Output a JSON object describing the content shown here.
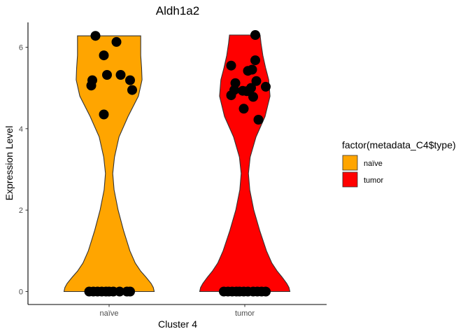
{
  "chart_data": {
    "type": "violin",
    "title": "Aldh1a2",
    "xlabel": "Cluster 4",
    "ylabel": "Expression Level",
    "categories": [
      "naïve",
      "tumor"
    ],
    "ylim": [
      -0.3,
      6.6
    ],
    "yticks": [
      "0",
      "2",
      "4",
      "6"
    ],
    "legend_title": "factor(metadata_C4$type)",
    "legend_position": "right",
    "grid": false,
    "series": [
      {
        "name": "naïve",
        "color": "#FFA500",
        "points": [
          {
            "x": -0.19,
            "y": 0
          },
          {
            "x": -0.15,
            "y": 0
          },
          {
            "x": -0.11,
            "y": 0
          },
          {
            "x": -0.07,
            "y": 0
          },
          {
            "x": -0.03,
            "y": 0
          },
          {
            "x": 0.0,
            "y": 0
          },
          {
            "x": 0.04,
            "y": 0
          },
          {
            "x": 0.1,
            "y": 0
          },
          {
            "x": 0.17,
            "y": 0
          },
          {
            "x": 0.2,
            "y": 0
          },
          {
            "x": -0.13,
            "y": 6.28
          },
          {
            "x": 0.07,
            "y": 6.13
          },
          {
            "x": -0.05,
            "y": 5.8
          },
          {
            "x": -0.02,
            "y": 5.32
          },
          {
            "x": 0.11,
            "y": 5.32
          },
          {
            "x": -0.16,
            "y": 5.19
          },
          {
            "x": 0.2,
            "y": 5.19
          },
          {
            "x": -0.17,
            "y": 5.06
          },
          {
            "x": 0.22,
            "y": 4.95
          },
          {
            "x": -0.05,
            "y": 4.35
          }
        ],
        "violin": [
          {
            "y": 0.0,
            "w": 1.0
          },
          {
            "y": 0.1,
            "w": 0.98
          },
          {
            "y": 0.2,
            "w": 0.93
          },
          {
            "y": 0.35,
            "w": 0.82
          },
          {
            "y": 0.5,
            "w": 0.7
          },
          {
            "y": 0.7,
            "w": 0.58
          },
          {
            "y": 1.0,
            "w": 0.46
          },
          {
            "y": 1.5,
            "w": 0.32
          },
          {
            "y": 2.0,
            "w": 0.2
          },
          {
            "y": 2.5,
            "w": 0.11
          },
          {
            "y": 2.9,
            "w": 0.08
          },
          {
            "y": 3.3,
            "w": 0.12
          },
          {
            "y": 3.8,
            "w": 0.22
          },
          {
            "y": 4.3,
            "w": 0.42
          },
          {
            "y": 4.8,
            "w": 0.65
          },
          {
            "y": 5.2,
            "w": 0.73
          },
          {
            "y": 5.5,
            "w": 0.72
          },
          {
            "y": 5.8,
            "w": 0.7
          },
          {
            "y": 6.1,
            "w": 0.7
          },
          {
            "y": 6.28,
            "w": 0.7
          }
        ]
      },
      {
        "name": "tumor",
        "color": "#FF0000",
        "points": [
          {
            "x": -0.2,
            "y": 0
          },
          {
            "x": -0.16,
            "y": 0
          },
          {
            "x": -0.12,
            "y": 0
          },
          {
            "x": -0.08,
            "y": 0
          },
          {
            "x": -0.05,
            "y": 0
          },
          {
            "x": -0.01,
            "y": 0
          },
          {
            "x": 0.03,
            "y": 0
          },
          {
            "x": 0.08,
            "y": 0
          },
          {
            "x": 0.12,
            "y": 0
          },
          {
            "x": 0.16,
            "y": 0
          },
          {
            "x": 0.2,
            "y": 0
          },
          {
            "x": 0.1,
            "y": 6.3
          },
          {
            "x": 0.1,
            "y": 5.68
          },
          {
            "x": -0.13,
            "y": 5.55
          },
          {
            "x": 0.03,
            "y": 5.42
          },
          {
            "x": 0.07,
            "y": 5.45
          },
          {
            "x": 0.11,
            "y": 5.17
          },
          {
            "x": -0.09,
            "y": 5.12
          },
          {
            "x": 0.2,
            "y": 5.03
          },
          {
            "x": 0.06,
            "y": 5.0
          },
          {
            "x": -0.1,
            "y": 4.95
          },
          {
            "x": -0.02,
            "y": 4.93
          },
          {
            "x": 0.02,
            "y": 4.92
          },
          {
            "x": -0.13,
            "y": 4.82
          },
          {
            "x": 0.08,
            "y": 4.78
          },
          {
            "x": -0.01,
            "y": 4.49
          },
          {
            "x": 0.13,
            "y": 4.22
          }
        ],
        "violin": [
          {
            "y": 0.0,
            "w": 1.0
          },
          {
            "y": 0.1,
            "w": 0.98
          },
          {
            "y": 0.2,
            "w": 0.93
          },
          {
            "y": 0.35,
            "w": 0.83
          },
          {
            "y": 0.5,
            "w": 0.72
          },
          {
            "y": 0.7,
            "w": 0.6
          },
          {
            "y": 1.0,
            "w": 0.48
          },
          {
            "y": 1.5,
            "w": 0.33
          },
          {
            "y": 2.0,
            "w": 0.2
          },
          {
            "y": 2.5,
            "w": 0.11
          },
          {
            "y": 2.9,
            "w": 0.08
          },
          {
            "y": 3.3,
            "w": 0.12
          },
          {
            "y": 3.8,
            "w": 0.25
          },
          {
            "y": 4.3,
            "w": 0.45
          },
          {
            "y": 4.8,
            "w": 0.56
          },
          {
            "y": 5.2,
            "w": 0.53
          },
          {
            "y": 5.5,
            "w": 0.46
          },
          {
            "y": 5.8,
            "w": 0.4
          },
          {
            "y": 6.1,
            "w": 0.36
          },
          {
            "y": 6.3,
            "w": 0.34
          }
        ]
      }
    ]
  }
}
